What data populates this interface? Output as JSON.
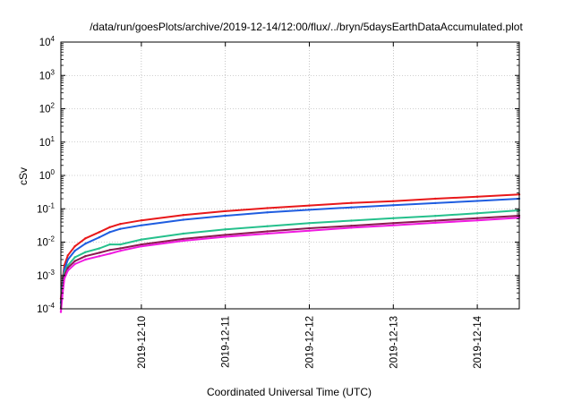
{
  "chart_data": {
    "type": "line",
    "title": "/data/run/goesPlots/archive/2019-12-14/12:00/flux/../bryn/5daysEarthDataAccumulated.plot",
    "xlabel": "Coordinated Universal Time (UTC)",
    "ylabel": "cSv",
    "yscale": "log",
    "ylim": [
      0.0001,
      10000
    ],
    "y_ticks": [
      {
        "base": "10",
        "exp": "-4",
        "value": 0.0001
      },
      {
        "base": "10",
        "exp": "-3",
        "value": 0.001
      },
      {
        "base": "10",
        "exp": "-2",
        "value": 0.01
      },
      {
        "base": "10",
        "exp": "-1",
        "value": 0.1
      },
      {
        "base": "10",
        "exp": "0",
        "value": 1
      },
      {
        "base": "10",
        "exp": "1",
        "value": 10
      },
      {
        "base": "10",
        "exp": "2",
        "value": 100
      },
      {
        "base": "10",
        "exp": "3",
        "value": 1000
      },
      {
        "base": "10",
        "exp": "4",
        "value": 10000
      }
    ],
    "xlim": [
      "2019-12-09T01:00",
      "2019-12-14T12:00"
    ],
    "x_ticks": [
      "2019-12-10",
      "2019-12-11",
      "2019-12-12",
      "2019-12-13",
      "2019-12-14"
    ],
    "grid": true,
    "series": [
      {
        "color": "#e8181a",
        "points": [
          [
            "2019-12-09T01:00",
            0.0002
          ],
          [
            "2019-12-09T01:30",
            0.0008
          ],
          [
            "2019-12-09T02:00",
            0.002
          ],
          [
            "2019-12-09T03:00",
            0.004
          ],
          [
            "2019-12-09T05:00",
            0.0075
          ],
          [
            "2019-12-09T08:00",
            0.013
          ],
          [
            "2019-12-09T12:00",
            0.02
          ],
          [
            "2019-12-09T15:00",
            0.028
          ],
          [
            "2019-12-09T18:00",
            0.035
          ],
          [
            "2019-12-10T00:00",
            0.045
          ],
          [
            "2019-12-10T12:00",
            0.065
          ],
          [
            "2019-12-11T00:00",
            0.085
          ],
          [
            "2019-12-11T12:00",
            0.105
          ],
          [
            "2019-12-12T00:00",
            0.125
          ],
          [
            "2019-12-12T12:00",
            0.15
          ],
          [
            "2019-12-13T00:00",
            0.17
          ],
          [
            "2019-12-13T12:00",
            0.2
          ],
          [
            "2019-12-14T00:00",
            0.23
          ],
          [
            "2019-12-14T12:00",
            0.27
          ]
        ]
      },
      {
        "color": "#1f5de0",
        "points": [
          [
            "2019-12-09T01:00",
            0.00015
          ],
          [
            "2019-12-09T01:30",
            0.0006
          ],
          [
            "2019-12-09T02:00",
            0.0015
          ],
          [
            "2019-12-09T03:00",
            0.003
          ],
          [
            "2019-12-09T05:00",
            0.0055
          ],
          [
            "2019-12-09T08:00",
            0.009
          ],
          [
            "2019-12-09T12:00",
            0.014
          ],
          [
            "2019-12-09T15:00",
            0.02
          ],
          [
            "2019-12-09T18:00",
            0.025
          ],
          [
            "2019-12-10T00:00",
            0.032
          ],
          [
            "2019-12-10T12:00",
            0.047
          ],
          [
            "2019-12-11T00:00",
            0.062
          ],
          [
            "2019-12-11T12:00",
            0.078
          ],
          [
            "2019-12-12T00:00",
            0.093
          ],
          [
            "2019-12-12T12:00",
            0.11
          ],
          [
            "2019-12-13T00:00",
            0.128
          ],
          [
            "2019-12-13T12:00",
            0.148
          ],
          [
            "2019-12-14T00:00",
            0.172
          ],
          [
            "2019-12-14T12:00",
            0.2
          ]
        ]
      },
      {
        "color": "#25c08c",
        "points": [
          [
            "2019-12-09T01:00",
            0.0001
          ],
          [
            "2019-12-09T01:30",
            0.0005
          ],
          [
            "2019-12-09T02:00",
            0.0012
          ],
          [
            "2019-12-09T03:00",
            0.002
          ],
          [
            "2019-12-09T05:00",
            0.0035
          ],
          [
            "2019-12-09T08:00",
            0.005
          ],
          [
            "2019-12-09T12:00",
            0.0065
          ],
          [
            "2019-12-09T15:00",
            0.0085
          ],
          [
            "2019-12-09T18:00",
            0.0085
          ],
          [
            "2019-12-10T00:00",
            0.012
          ],
          [
            "2019-12-10T12:00",
            0.018
          ],
          [
            "2019-12-11T00:00",
            0.024
          ],
          [
            "2019-12-11T12:00",
            0.03
          ],
          [
            "2019-12-12T00:00",
            0.037
          ],
          [
            "2019-12-12T12:00",
            0.044
          ],
          [
            "2019-12-13T00:00",
            0.052
          ],
          [
            "2019-12-13T12:00",
            0.061
          ],
          [
            "2019-12-14T00:00",
            0.073
          ],
          [
            "2019-12-14T12:00",
            0.09
          ]
        ]
      },
      {
        "color": "#8b1a4f",
        "points": [
          [
            "2019-12-09T01:00",
            0.0001
          ],
          [
            "2019-12-09T01:30",
            0.0004
          ],
          [
            "2019-12-09T02:00",
            0.001
          ],
          [
            "2019-12-09T03:00",
            0.0017
          ],
          [
            "2019-12-09T05:00",
            0.0027
          ],
          [
            "2019-12-09T08:00",
            0.0038
          ],
          [
            "2019-12-09T12:00",
            0.0048
          ],
          [
            "2019-12-09T15:00",
            0.0058
          ],
          [
            "2019-12-09T18:00",
            0.0065
          ],
          [
            "2019-12-10T00:00",
            0.0085
          ],
          [
            "2019-12-10T12:00",
            0.0125
          ],
          [
            "2019-12-11T00:00",
            0.0165
          ],
          [
            "2019-12-11T12:00",
            0.021
          ],
          [
            "2019-12-12T00:00",
            0.026
          ],
          [
            "2019-12-12T12:00",
            0.031
          ],
          [
            "2019-12-13T00:00",
            0.037
          ],
          [
            "2019-12-13T12:00",
            0.044
          ],
          [
            "2019-12-14T00:00",
            0.052
          ],
          [
            "2019-12-14T12:00",
            0.062
          ]
        ]
      },
      {
        "color": "#f01ae0",
        "points": [
          [
            "2019-12-09T01:00",
            8e-05
          ],
          [
            "2019-12-09T01:30",
            0.0003
          ],
          [
            "2019-12-09T02:00",
            0.0008
          ],
          [
            "2019-12-09T03:00",
            0.0014
          ],
          [
            "2019-12-09T05:00",
            0.0022
          ],
          [
            "2019-12-09T08:00",
            0.003
          ],
          [
            "2019-12-09T12:00",
            0.0038
          ],
          [
            "2019-12-09T15:00",
            0.0045
          ],
          [
            "2019-12-09T18:00",
            0.0055
          ],
          [
            "2019-12-10T00:00",
            0.0075
          ],
          [
            "2019-12-10T12:00",
            0.011
          ],
          [
            "2019-12-11T00:00",
            0.0145
          ],
          [
            "2019-12-11T12:00",
            0.018
          ],
          [
            "2019-12-12T00:00",
            0.022
          ],
          [
            "2019-12-12T12:00",
            0.027
          ],
          [
            "2019-12-13T00:00",
            0.032
          ],
          [
            "2019-12-13T12:00",
            0.038
          ],
          [
            "2019-12-14T00:00",
            0.045
          ],
          [
            "2019-12-14T12:00",
            0.054
          ]
        ]
      }
    ]
  }
}
